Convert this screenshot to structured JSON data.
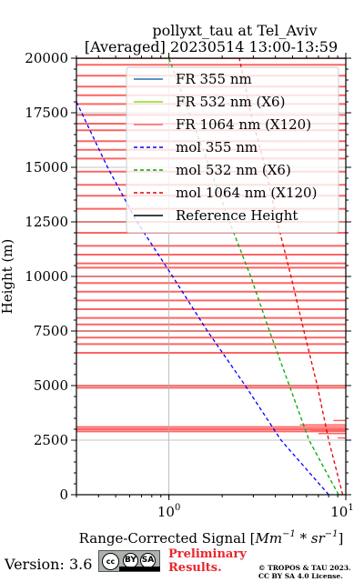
{
  "chart_data": {
    "type": "line",
    "title": "pollyxt_tau at Tel_Aviv",
    "subtitle": "[Averaged] 20230514 13:00-13:59",
    "xlabel": "Range-Corrected Signal [Mm^-1 * sr^-1]",
    "ylabel": "Height (m)",
    "xscale": "log",
    "xlim": [
      0.3,
      10
    ],
    "ylim": [
      0,
      20000
    ],
    "x_ticks": [
      "10^0",
      "10^1"
    ],
    "y_ticks": [
      "0",
      "2500",
      "5000",
      "7500",
      "10000",
      "12500",
      "15000",
      "17500",
      "20000"
    ],
    "grid": true,
    "legend_position": "top-right",
    "legend": [
      {
        "label": "FR 355 nm",
        "color": "#1f77b4",
        "style": "solid"
      },
      {
        "label": "FR 532 nm (X6)",
        "color": "#80e619",
        "style": "solid"
      },
      {
        "label": "FR 1064 nm (X120)",
        "color": "#ff6464",
        "style": "solid"
      },
      {
        "label": "mol 355 nm",
        "color": "#0000ff",
        "style": "dashed"
      },
      {
        "label": "mol 532 nm (X6)",
        "color": "#00aa00",
        "style": "dashed"
      },
      {
        "label": "mol 1064 nm (X120)",
        "color": "#e60000",
        "style": "dashed"
      },
      {
        "label": "Reference Height",
        "color": "#000000",
        "style": "solid"
      }
    ],
    "series": [
      {
        "name": "mol 355 nm",
        "color": "#0000ff",
        "style": "dashed",
        "points": [
          [
            8.0,
            0
          ],
          [
            4.3,
            2500
          ],
          [
            2.7,
            5000
          ],
          [
            1.65,
            7500
          ],
          [
            1.05,
            10000
          ],
          [
            0.66,
            12500
          ],
          [
            0.45,
            15000
          ],
          [
            0.3,
            18000
          ]
        ]
      },
      {
        "name": "mol 532 nm (X6)",
        "color": "#00aa00",
        "style": "dashed",
        "points": [
          [
            9.1,
            0
          ],
          [
            6.2,
            2500
          ],
          [
            4.8,
            5000
          ],
          [
            3.7,
            7500
          ],
          [
            2.9,
            10000
          ],
          [
            2.2,
            12500
          ],
          [
            1.7,
            15000
          ],
          [
            1.3,
            17500
          ],
          [
            1.0,
            20000
          ]
        ]
      },
      {
        "name": "mol 1064 nm (X120)",
        "color": "#e60000",
        "style": "dashed",
        "points": [
          [
            9.6,
            0
          ],
          [
            8.0,
            2500
          ],
          [
            6.9,
            5000
          ],
          [
            5.8,
            7500
          ],
          [
            4.9,
            10000
          ],
          [
            4.1,
            12500
          ],
          [
            3.5,
            15000
          ],
          [
            2.9,
            17500
          ],
          [
            2.5,
            20000
          ]
        ]
      },
      {
        "name": "FR 1064 nm (X120)",
        "color": "#ff6464",
        "style": "solid",
        "band_x_range": [
          0.3,
          10
        ],
        "band_heights": [
          20000,
          19700,
          19200,
          18700,
          18300,
          17900,
          17400,
          17000,
          16700,
          16200,
          15800,
          15400,
          14800,
          14200,
          13700,
          13100,
          12500,
          12000,
          11400,
          11000,
          10600,
          10400,
          10000,
          9700,
          9300,
          8900,
          8500,
          8100,
          7800,
          7500,
          7200,
          6900,
          6500,
          5000,
          4900,
          3100,
          3000,
          2900
        ]
      }
    ]
  },
  "footer": {
    "version": "Version: 3.6",
    "cc_label": "cc",
    "by_label": "BY",
    "sa_label": "SA",
    "preliminary_line1": "Preliminary",
    "preliminary_line2": "Results.",
    "copyright_line1": "© TROPOS & TAU 2023.",
    "copyright_line2": "CC BY SA 4.0 License."
  }
}
